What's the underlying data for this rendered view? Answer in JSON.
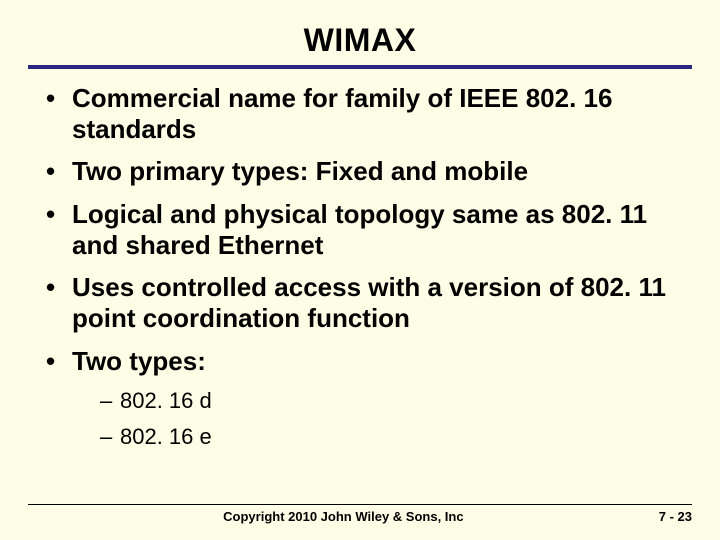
{
  "colors": {
    "background": "#fefde6",
    "text": "#000000",
    "rule": "#28287e",
    "footer_rule": "#000000"
  },
  "title": {
    "text": "WIMAX",
    "fontsize": 32,
    "color": "#000000"
  },
  "rule": {
    "color": "#28287e",
    "thickness": 4
  },
  "bullets": {
    "fontsize": 26,
    "color": "#000000",
    "items": [
      "Commercial name for family of IEEE 802. 16 standards",
      "Two primary types:  Fixed and mobile",
      "Logical and physical topology same as 802. 11 and shared Ethernet",
      "Uses controlled access with a version of 802. 11 point coordination function",
      "Two types:"
    ],
    "sub_fontsize": 22,
    "sub_items": [
      "802. 16 d",
      "802. 16 e"
    ]
  },
  "footer": {
    "fontsize": 13,
    "copyright": "Copyright 2010 John Wiley & Sons, Inc",
    "page": "7 - 23"
  }
}
